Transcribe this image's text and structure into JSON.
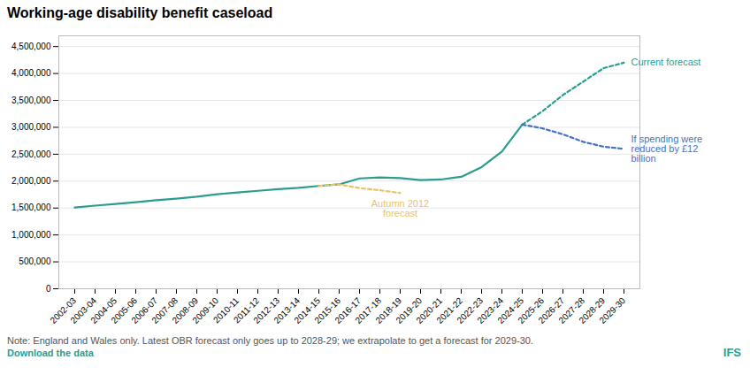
{
  "chart_data": {
    "type": "line",
    "title": "Working-age disability benefit caseload",
    "categories": [
      "2002-03",
      "2003-04",
      "2004-05",
      "2005-06",
      "2006-07",
      "2007-08",
      "2008-09",
      "2009-10",
      "2010-11",
      "2011-12",
      "2012-13",
      "2013-14",
      "2014-15",
      "2015-16",
      "2016-17",
      "2017-18",
      "2018-19",
      "2019-20",
      "2020-21",
      "2021-22",
      "2022-23",
      "2023-24",
      "2024-25",
      "2025-26",
      "2026-27",
      "2027-28",
      "2028-29",
      "2029-30"
    ],
    "series": [
      {
        "color": "#2a9d8f",
        "line_style": "solid",
        "values": [
          1510000,
          1545000,
          1575000,
          1610000,
          1645000,
          1675000,
          1710000,
          1755000,
          1790000,
          1820000,
          1850000,
          1875000,
          1910000,
          1940000,
          2050000,
          2070000,
          2055000,
          2020000,
          2030000,
          2080000,
          2260000,
          2550000,
          3050000,
          null,
          null,
          null,
          null,
          null
        ]
      },
      {
        "name": "Current forecast",
        "color": "#2a9d8f",
        "line_style": "dashed",
        "values": [
          null,
          null,
          null,
          null,
          null,
          null,
          null,
          null,
          null,
          null,
          null,
          null,
          null,
          null,
          null,
          null,
          null,
          null,
          null,
          null,
          null,
          null,
          3050000,
          3300000,
          3600000,
          3850000,
          4100000,
          4200000
        ]
      },
      {
        "name": "Autumn 2012\nforecast",
        "color": "#e9c46a",
        "line_style": "dashed",
        "values": [
          null,
          null,
          null,
          null,
          null,
          null,
          null,
          null,
          null,
          null,
          null,
          null,
          1910000,
          1940000,
          1870000,
          1830000,
          1780000,
          null,
          null,
          null,
          null,
          null,
          null,
          null,
          null,
          null,
          null,
          null
        ]
      },
      {
        "name": "If spending were\nreduced by £12\nbillion",
        "color": "#4472c4",
        "line_style": "dashed",
        "values": [
          null,
          null,
          null,
          null,
          null,
          null,
          null,
          null,
          null,
          null,
          null,
          null,
          null,
          null,
          null,
          null,
          null,
          null,
          null,
          null,
          null,
          null,
          3050000,
          2980000,
          2870000,
          2730000,
          2640000,
          2600000
        ]
      }
    ],
    "ylim": [
      0,
      4700000
    ],
    "yticks": [
      0,
      {
        "value": 500000,
        "label": "500,000"
      },
      {
        "value": 1000000,
        "label": "1,000,000"
      },
      {
        "value": 1500000,
        "label": "1,500,000"
      },
      {
        "value": 2000000,
        "label": "2,000,000"
      },
      {
        "value": 2500000,
        "label": "2,500,000"
      },
      {
        "value": 3000000,
        "label": "3,000,000"
      },
      {
        "value": 3500000,
        "label": "3,500,000"
      },
      {
        "value": 4000000,
        "label": "4,000,000"
      },
      {
        "value": 4500000,
        "label": "4,500,000"
      }
    ],
    "grid": true,
    "notes": [
      {
        "text": "Note: England and Wales only. Latest OBR forecast only goes up to 2028-29; we extrapolate to get a forecast for 2029-30.",
        "color": "#555555"
      },
      {
        "text": "Download the data",
        "color": "#2a9d8f"
      }
    ],
    "branding": {
      "text": "IFS",
      "color": "#2a9d8f"
    }
  }
}
